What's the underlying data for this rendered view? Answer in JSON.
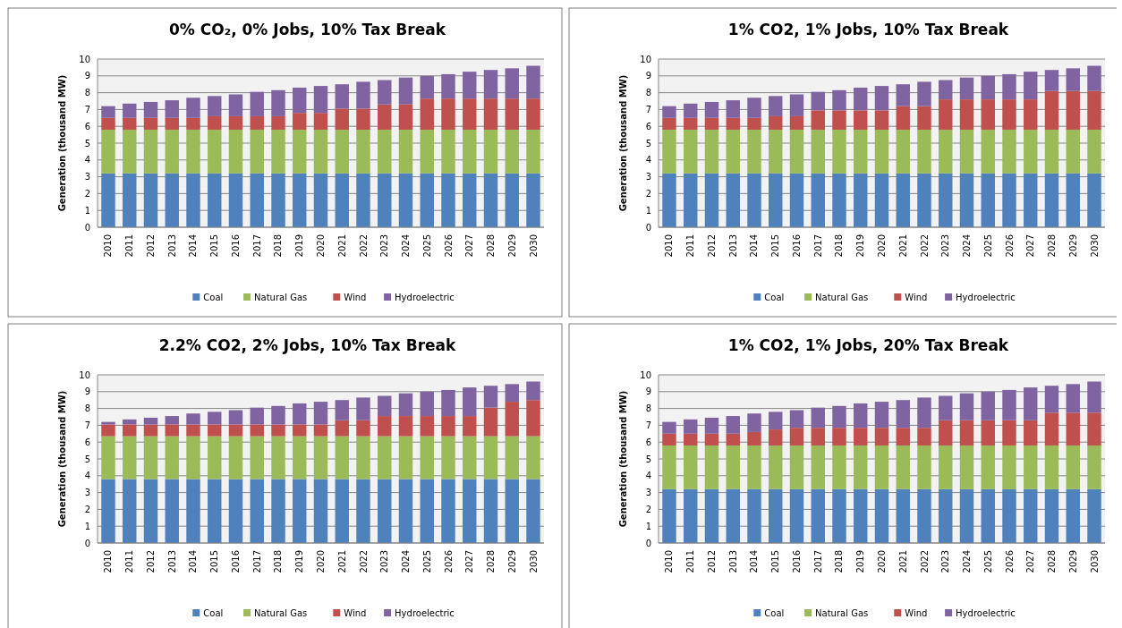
{
  "chart_data": [
    {
      "type": "bar",
      "title": "0% CO₂, 0% Jobs, 10% Tax Break",
      "ylabel": "Generation (thousand MW)",
      "stacked": true,
      "grid": "y",
      "legend": "bottom",
      "ylim": [
        0,
        10
      ],
      "yticks": [
        0,
        1,
        2,
        3,
        4,
        5,
        6,
        7,
        8,
        9,
        10
      ],
      "categories": [
        "2010",
        "2011",
        "2012",
        "2013",
        "2014",
        "2015",
        "2016",
        "2017",
        "2018",
        "2019",
        "2020",
        "2021",
        "2022",
        "2023",
        "2024",
        "2025",
        "2026",
        "2027",
        "2028",
        "2029",
        "2030"
      ],
      "series": [
        {
          "name": "Coal",
          "color": "#4f81bd",
          "values": [
            3.2,
            3.2,
            3.2,
            3.2,
            3.2,
            3.2,
            3.2,
            3.2,
            3.2,
            3.2,
            3.2,
            3.2,
            3.2,
            3.2,
            3.2,
            3.2,
            3.2,
            3.2,
            3.2,
            3.2,
            3.2
          ]
        },
        {
          "name": "Natural Gas",
          "color": "#9bbb59",
          "values": [
            2.6,
            2.6,
            2.6,
            2.6,
            2.6,
            2.6,
            2.6,
            2.6,
            2.6,
            2.6,
            2.6,
            2.6,
            2.6,
            2.6,
            2.6,
            2.6,
            2.6,
            2.6,
            2.6,
            2.6,
            2.6
          ]
        },
        {
          "name": "Wind",
          "color": "#c0504d",
          "values": [
            0.7,
            0.7,
            0.7,
            0.7,
            0.7,
            0.8,
            0.8,
            0.8,
            0.8,
            1.0,
            1.0,
            1.25,
            1.25,
            1.5,
            1.5,
            1.85,
            1.85,
            1.85,
            1.85,
            1.85,
            1.85
          ]
        },
        {
          "name": "Hydroelectric",
          "color": "#8064a2",
          "values": [
            0.7,
            0.85,
            0.95,
            1.05,
            1.2,
            1.2,
            1.3,
            1.45,
            1.55,
            1.5,
            1.6,
            1.45,
            1.6,
            1.45,
            1.6,
            1.35,
            1.45,
            1.6,
            1.7,
            1.8,
            1.95
          ]
        }
      ]
    },
    {
      "type": "bar",
      "title": "1% CO2, 1% Jobs, 10% Tax Break",
      "ylabel": "Generation (thousand MW)",
      "stacked": true,
      "grid": "y",
      "legend": "bottom",
      "ylim": [
        0,
        10
      ],
      "yticks": [
        0,
        1,
        2,
        3,
        4,
        5,
        6,
        7,
        8,
        9,
        10
      ],
      "categories": [
        "2010",
        "2011",
        "2012",
        "2013",
        "2014",
        "2015",
        "2016",
        "2017",
        "2018",
        "2019",
        "2020",
        "2021",
        "2022",
        "2023",
        "2024",
        "2025",
        "2026",
        "2027",
        "2028",
        "2029",
        "2030"
      ],
      "series": [
        {
          "name": "Coal",
          "color": "#4f81bd",
          "values": [
            3.2,
            3.2,
            3.2,
            3.2,
            3.2,
            3.2,
            3.2,
            3.2,
            3.2,
            3.2,
            3.2,
            3.2,
            3.2,
            3.2,
            3.2,
            3.2,
            3.2,
            3.2,
            3.2,
            3.2,
            3.2
          ]
        },
        {
          "name": "Natural Gas",
          "color": "#9bbb59",
          "values": [
            2.6,
            2.6,
            2.6,
            2.6,
            2.6,
            2.6,
            2.6,
            2.6,
            2.6,
            2.6,
            2.6,
            2.6,
            2.6,
            2.6,
            2.6,
            2.6,
            2.6,
            2.6,
            2.6,
            2.6,
            2.6
          ]
        },
        {
          "name": "Wind",
          "color": "#c0504d",
          "values": [
            0.7,
            0.7,
            0.7,
            0.7,
            0.7,
            0.8,
            0.8,
            1.15,
            1.15,
            1.15,
            1.15,
            1.4,
            1.4,
            1.8,
            1.8,
            1.8,
            1.8,
            1.8,
            2.3,
            2.3,
            2.3
          ]
        },
        {
          "name": "Hydroelectric",
          "color": "#8064a2",
          "values": [
            0.7,
            0.85,
            0.95,
            1.05,
            1.2,
            1.2,
            1.3,
            1.1,
            1.2,
            1.35,
            1.45,
            1.3,
            1.45,
            1.15,
            1.3,
            1.4,
            1.5,
            1.65,
            1.25,
            1.35,
            1.5
          ]
        }
      ]
    },
    {
      "type": "bar",
      "title": "2.2% CO2, 2% Jobs, 10% Tax Break",
      "ylabel": "Generation (thousand MW)",
      "stacked": true,
      "grid": "y",
      "legend": "bottom",
      "ylim": [
        0,
        10
      ],
      "yticks": [
        0,
        1,
        2,
        3,
        4,
        5,
        6,
        7,
        8,
        9,
        10
      ],
      "categories": [
        "2010",
        "2011",
        "2012",
        "2013",
        "2014",
        "2015",
        "2016",
        "2017",
        "2018",
        "2019",
        "2020",
        "2021",
        "2022",
        "2023",
        "2024",
        "2025",
        "2026",
        "2027",
        "2028",
        "2029",
        "2030"
      ],
      "series": [
        {
          "name": "Coal",
          "color": "#4f81bd",
          "values": [
            3.8,
            3.8,
            3.8,
            3.8,
            3.8,
            3.8,
            3.8,
            3.8,
            3.8,
            3.8,
            3.8,
            3.8,
            3.8,
            3.8,
            3.8,
            3.8,
            3.8,
            3.8,
            3.8,
            3.8,
            3.8
          ]
        },
        {
          "name": "Natural Gas",
          "color": "#9bbb59",
          "values": [
            2.55,
            2.55,
            2.55,
            2.55,
            2.55,
            2.55,
            2.55,
            2.55,
            2.55,
            2.55,
            2.55,
            2.55,
            2.55,
            2.55,
            2.55,
            2.55,
            2.55,
            2.55,
            2.55,
            2.55,
            2.55
          ]
        },
        {
          "name": "Wind",
          "color": "#c0504d",
          "values": [
            0.7,
            0.7,
            0.7,
            0.7,
            0.7,
            0.7,
            0.7,
            0.7,
            0.7,
            0.7,
            0.7,
            0.95,
            0.95,
            1.2,
            1.2,
            1.2,
            1.2,
            1.2,
            1.7,
            2.05,
            2.15
          ]
        },
        {
          "name": "Hydroelectric",
          "color": "#8064a2",
          "values": [
            0.15,
            0.3,
            0.4,
            0.5,
            0.65,
            0.75,
            0.85,
            1.0,
            1.1,
            1.25,
            1.35,
            1.2,
            1.35,
            1.2,
            1.35,
            1.45,
            1.55,
            1.7,
            1.3,
            1.05,
            1.1
          ]
        }
      ]
    },
    {
      "type": "bar",
      "title": "1% CO2, 1% Jobs, 20% Tax Break",
      "ylabel": "Generation (thousand MW)",
      "stacked": true,
      "grid": "y",
      "legend": "bottom",
      "ylim": [
        0,
        10
      ],
      "yticks": [
        0,
        1,
        2,
        3,
        4,
        5,
        6,
        7,
        8,
        9,
        10
      ],
      "categories": [
        "2010",
        "2011",
        "2012",
        "2013",
        "2014",
        "2015",
        "2016",
        "2017",
        "2018",
        "2019",
        "2020",
        "2021",
        "2022",
        "2023",
        "2024",
        "2025",
        "2026",
        "2027",
        "2028",
        "2029",
        "2030"
      ],
      "series": [
        {
          "name": "Coal",
          "color": "#4f81bd",
          "values": [
            3.2,
            3.2,
            3.2,
            3.2,
            3.2,
            3.2,
            3.2,
            3.2,
            3.2,
            3.2,
            3.2,
            3.2,
            3.2,
            3.2,
            3.2,
            3.2,
            3.2,
            3.2,
            3.2,
            3.2,
            3.2
          ]
        },
        {
          "name": "Natural Gas",
          "color": "#9bbb59",
          "values": [
            2.6,
            2.6,
            2.6,
            2.6,
            2.6,
            2.6,
            2.6,
            2.6,
            2.6,
            2.6,
            2.6,
            2.6,
            2.6,
            2.6,
            2.6,
            2.6,
            2.6,
            2.6,
            2.6,
            2.6,
            2.6
          ]
        },
        {
          "name": "Wind",
          "color": "#c0504d",
          "values": [
            0.7,
            0.7,
            0.7,
            0.7,
            0.8,
            0.95,
            1.05,
            1.05,
            1.05,
            1.05,
            1.05,
            1.05,
            1.05,
            1.5,
            1.5,
            1.5,
            1.5,
            1.5,
            1.95,
            1.95,
            1.95
          ]
        },
        {
          "name": "Hydroelectric",
          "color": "#8064a2",
          "values": [
            0.7,
            0.85,
            0.95,
            1.05,
            1.1,
            1.05,
            1.05,
            1.2,
            1.3,
            1.45,
            1.55,
            1.65,
            1.8,
            1.45,
            1.6,
            1.7,
            1.8,
            1.95,
            1.6,
            1.7,
            1.85
          ]
        }
      ]
    }
  ]
}
